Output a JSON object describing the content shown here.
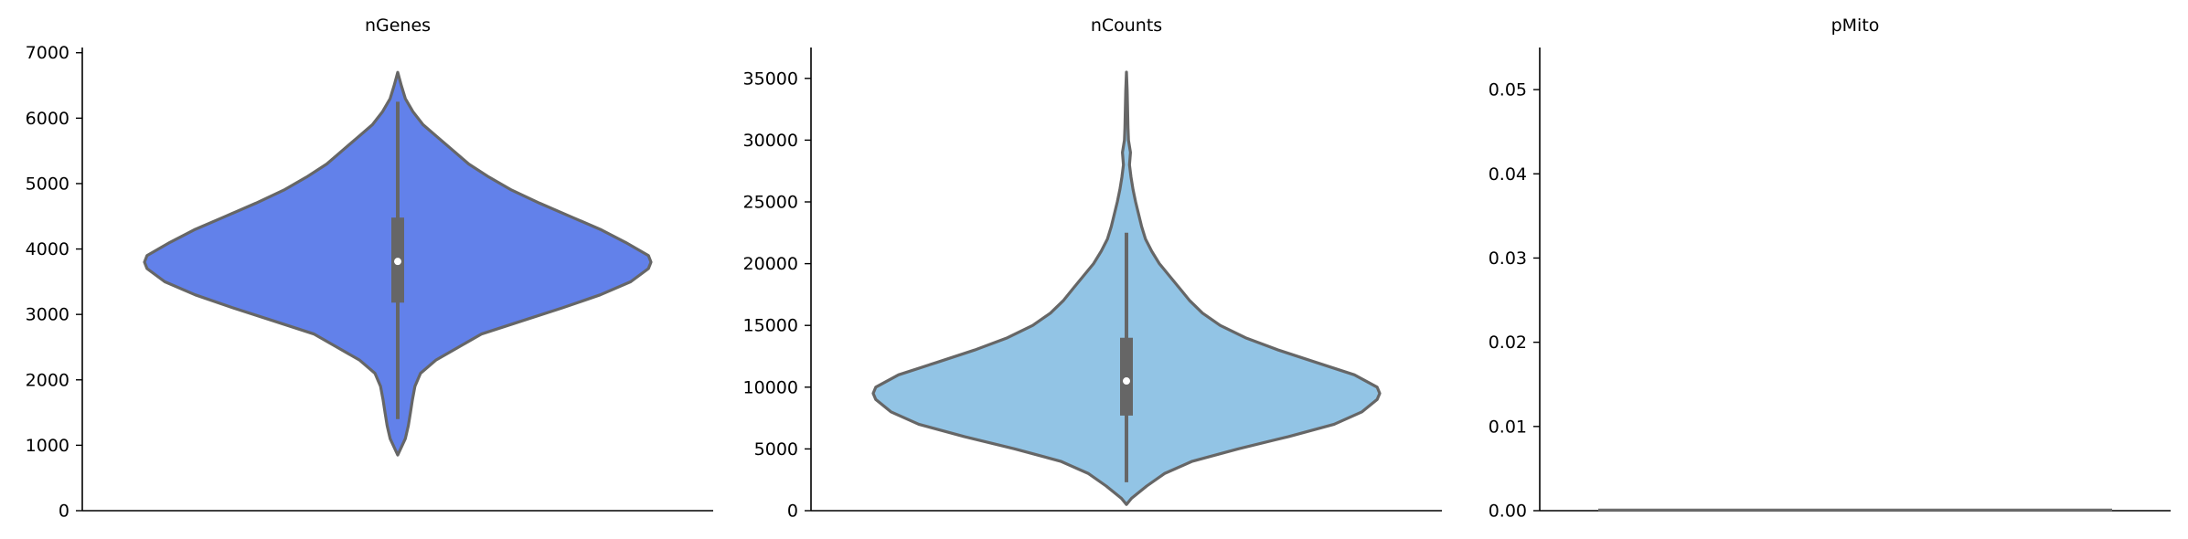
{
  "chart_data": [
    {
      "type": "violin",
      "title": "nGenes",
      "xlabel": "",
      "ylabel": "",
      "ylim": [
        0,
        7080
      ],
      "yticks": [
        0,
        1000,
        2000,
        3000,
        4000,
        5000,
        6000,
        7000
      ],
      "ytick_labels": [
        "0",
        "1000",
        "2000",
        "3000",
        "4000",
        "5000",
        "6000",
        "7000"
      ],
      "color": "#6281ea",
      "violin_profile": [
        {
          "y": 850,
          "halfwidth": 0.0
        },
        {
          "y": 950,
          "halfwidth": 0.012
        },
        {
          "y": 1100,
          "halfwidth": 0.03
        },
        {
          "y": 1300,
          "halfwidth": 0.042
        },
        {
          "y": 1500,
          "halfwidth": 0.05
        },
        {
          "y": 1700,
          "halfwidth": 0.058
        },
        {
          "y": 1900,
          "halfwidth": 0.068
        },
        {
          "y": 2100,
          "halfwidth": 0.09
        },
        {
          "y": 2300,
          "halfwidth": 0.15
        },
        {
          "y": 2500,
          "halfwidth": 0.24
        },
        {
          "y": 2700,
          "halfwidth": 0.33
        },
        {
          "y": 2900,
          "halfwidth": 0.49
        },
        {
          "y": 3100,
          "halfwidth": 0.65
        },
        {
          "y": 3300,
          "halfwidth": 0.8
        },
        {
          "y": 3500,
          "halfwidth": 0.92
        },
        {
          "y": 3700,
          "halfwidth": 0.99
        },
        {
          "y": 3800,
          "halfwidth": 1.0
        },
        {
          "y": 3900,
          "halfwidth": 0.99
        },
        {
          "y": 4100,
          "halfwidth": 0.9
        },
        {
          "y": 4300,
          "halfwidth": 0.8
        },
        {
          "y": 4500,
          "halfwidth": 0.68
        },
        {
          "y": 4700,
          "halfwidth": 0.56
        },
        {
          "y": 4900,
          "halfwidth": 0.45
        },
        {
          "y": 5100,
          "halfwidth": 0.36
        },
        {
          "y": 5300,
          "halfwidth": 0.28
        },
        {
          "y": 5500,
          "halfwidth": 0.22
        },
        {
          "y": 5700,
          "halfwidth": 0.16
        },
        {
          "y": 5900,
          "halfwidth": 0.1
        },
        {
          "y": 6100,
          "halfwidth": 0.06
        },
        {
          "y": 6300,
          "halfwidth": 0.03
        },
        {
          "y": 6500,
          "halfwidth": 0.014
        },
        {
          "y": 6700,
          "halfwidth": 0.0
        }
      ],
      "box": {
        "q1": 3180,
        "median": 3810,
        "q3": 4480,
        "whisker_low": 1400,
        "whisker_high": 6250
      }
    },
    {
      "type": "violin",
      "title": "nCounts",
      "xlabel": "",
      "ylabel": "",
      "ylim": [
        0,
        37500
      ],
      "yticks": [
        0,
        5000,
        10000,
        15000,
        20000,
        25000,
        30000,
        35000
      ],
      "ytick_labels": [
        "0",
        "5000",
        "10000",
        "15000",
        "20000",
        "25000",
        "30000",
        "35000"
      ],
      "color": "#92c4e5",
      "violin_profile": [
        {
          "y": 500,
          "halfwidth": 0.0
        },
        {
          "y": 1000,
          "halfwidth": 0.02
        },
        {
          "y": 2000,
          "halfwidth": 0.08
        },
        {
          "y": 3000,
          "halfwidth": 0.15
        },
        {
          "y": 4000,
          "halfwidth": 0.26
        },
        {
          "y": 5000,
          "halfwidth": 0.44
        },
        {
          "y": 6000,
          "halfwidth": 0.64
        },
        {
          "y": 7000,
          "halfwidth": 0.82
        },
        {
          "y": 8000,
          "halfwidth": 0.93
        },
        {
          "y": 9000,
          "halfwidth": 0.99
        },
        {
          "y": 9500,
          "halfwidth": 1.0
        },
        {
          "y": 10000,
          "halfwidth": 0.99
        },
        {
          "y": 11000,
          "halfwidth": 0.9
        },
        {
          "y": 12000,
          "halfwidth": 0.75
        },
        {
          "y": 13000,
          "halfwidth": 0.6
        },
        {
          "y": 14000,
          "halfwidth": 0.47
        },
        {
          "y": 15000,
          "halfwidth": 0.37
        },
        {
          "y": 16000,
          "halfwidth": 0.3
        },
        {
          "y": 17000,
          "halfwidth": 0.25
        },
        {
          "y": 18000,
          "halfwidth": 0.21
        },
        {
          "y": 19000,
          "halfwidth": 0.17
        },
        {
          "y": 20000,
          "halfwidth": 0.13
        },
        {
          "y": 21000,
          "halfwidth": 0.1
        },
        {
          "y": 22000,
          "halfwidth": 0.075
        },
        {
          "y": 23000,
          "halfwidth": 0.06
        },
        {
          "y": 24000,
          "halfwidth": 0.048
        },
        {
          "y": 25000,
          "halfwidth": 0.036
        },
        {
          "y": 26000,
          "halfwidth": 0.026
        },
        {
          "y": 27000,
          "halfwidth": 0.018
        },
        {
          "y": 28000,
          "halfwidth": 0.012
        },
        {
          "y": 29000,
          "halfwidth": 0.016
        },
        {
          "y": 30000,
          "halfwidth": 0.008
        },
        {
          "y": 31000,
          "halfwidth": 0.006
        },
        {
          "y": 32000,
          "halfwidth": 0.005
        },
        {
          "y": 33000,
          "halfwidth": 0.004
        },
        {
          "y": 34000,
          "halfwidth": 0.003
        },
        {
          "y": 35500,
          "halfwidth": 0.0
        }
      ],
      "box": {
        "q1": 7700,
        "median": 10500,
        "q3": 14000,
        "whisker_low": 2300,
        "whisker_high": 22500
      }
    },
    {
      "type": "violin",
      "title": "pMito",
      "xlabel": "",
      "ylabel": "",
      "ylim": [
        0,
        0.055
      ],
      "yticks": [
        0.0,
        0.01,
        0.02,
        0.03,
        0.04,
        0.05
      ],
      "ytick_labels": [
        "0.00",
        "0.01",
        "0.02",
        "0.03",
        "0.04",
        "0.05"
      ],
      "color": "#6e6e6e",
      "all_values": 0,
      "violin_profile": [],
      "box": null
    }
  ]
}
